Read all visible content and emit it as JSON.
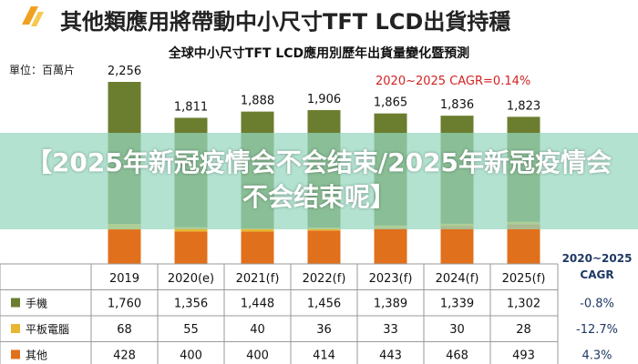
{
  "header": {
    "main_title": "其他類應用將帶動中小尺寸TFT LCD出貨持穩",
    "sub_title": "全球中小尺寸TFT LCD應用別歷年出貨量變化暨預測",
    "unit": "單位：百萬片",
    "cagr_note": "2020~2025  CAGR=0.14%"
  },
  "chart_data": {
    "type": "bar",
    "stacked": true,
    "categories": [
      "2019",
      "2020(e)",
      "2021(f)",
      "2022(f)",
      "2023(f)",
      "2024(f)",
      "2025(f)"
    ],
    "totals": [
      "2,256",
      "1,811",
      "1,888",
      "1,906",
      "1,865",
      "1,836",
      "1,823"
    ],
    "series": [
      {
        "name": "手機",
        "values": [
          1760,
          1356,
          1448,
          1456,
          1389,
          1339,
          1302
        ],
        "labels": [
          "1,760",
          "1,356",
          "1,448",
          "1,456",
          "1,389",
          "1,339",
          "1,302"
        ],
        "cagr": "-0.8%",
        "color": "#6b7d2f",
        "color_light": "#b9c79a"
      },
      {
        "name": "平板電腦",
        "values": [
          68,
          55,
          40,
          36,
          33,
          30,
          28
        ],
        "labels": [
          "68",
          "55",
          "40",
          "36",
          "33",
          "30",
          "28"
        ],
        "cagr": "-12.7%",
        "color": "#e8b632",
        "color_light": "#f0e3b0"
      },
      {
        "name": "其他",
        "values": [
          428,
          400,
          400,
          414,
          443,
          468,
          493
        ],
        "labels": [
          "428",
          "400",
          "400",
          "414",
          "443",
          "468",
          "493"
        ],
        "cagr": "4.3%",
        "color": "#e0701c",
        "color_light": "#f3c49e"
      }
    ],
    "cagr_header": [
      "2020~2025",
      "CAGR"
    ],
    "ylabel": "單位：百萬片",
    "ylim": [
      0,
      2500
    ]
  },
  "overlay": {
    "text": "【2025年新冠疫情会不会结束/2025年新冠疫情会不会结束呢】"
  },
  "colors": {
    "overlay": "#96d7be",
    "cagr_red": "#d22222",
    "cagr_blue": "#1f3864"
  }
}
